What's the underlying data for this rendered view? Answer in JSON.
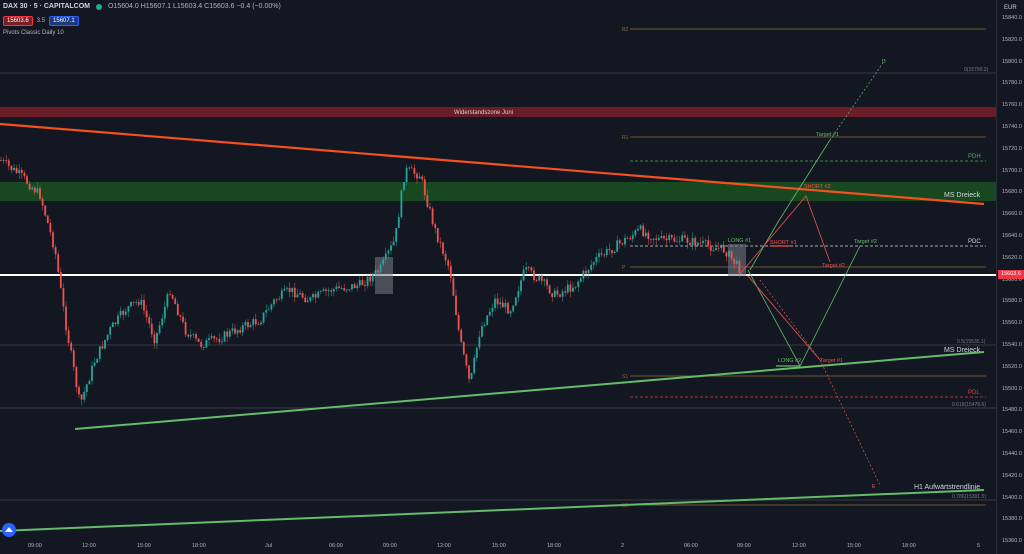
{
  "header": {
    "symbol": "DAX 30 · 5 · CAPITALCOM",
    "ohlc": "O15604.0 H15607.1 L15603.4 C15603.6 −0.4 (−0.00%)",
    "bid": "15603.6",
    "spread": "3.5",
    "ask": "15607.1",
    "indicator": "Pivots Classic Daily 10"
  },
  "currency": "EUR",
  "current_price": "15603.6",
  "colors": {
    "bg": "#131722",
    "up": "#26a69a",
    "down": "#ef5350",
    "red_line": "#f23645",
    "green_line": "#4caf50",
    "resist": "#7a1f27",
    "support": "#1b5e20"
  },
  "price_axis": [
    "15840.0",
    "15820.0",
    "15800.0",
    "15780.0",
    "15760.0",
    "15740.0",
    "15720.0",
    "15700.0",
    "15680.0",
    "15660.0",
    "15640.0",
    "15620.0",
    "15600.0",
    "15580.0",
    "15560.0",
    "15540.0",
    "15520.0",
    "15500.0",
    "15480.0",
    "15460.0",
    "15440.0",
    "15420.0",
    "15400.0",
    "15380.0",
    "15360.0"
  ],
  "time_axis": [
    "09:00",
    "12:00",
    "15:00",
    "18:00",
    "Jul",
    "06:00",
    "09:00",
    "12:00",
    "15:00",
    "18:00",
    "2",
    "06:00",
    "09:00",
    "12:00",
    "15:00",
    "18:00",
    "5"
  ],
  "annotations": {
    "resist_zone": "Widerstandszone Juni",
    "ms_top": "MS Dreieck",
    "ms_bottom": "MS Dreieck",
    "h1": "H1 Aufwärtstrendlinie",
    "pdh": "PDH",
    "pdc": "PDC",
    "pdl": "PDL",
    "r2": "R2",
    "r1": "R1",
    "p": "P",
    "s1": "S1",
    "s2": "S2",
    "fib0": "0(15790.2)",
    "fib05": "0.5(15535.1)",
    "fib0618": "0.618(15478.6)",
    "fib0786": "0.786(15391.5)",
    "long1": "LONG #1",
    "long2": "LONG #2",
    "short1": "SHORT #1",
    "short2": "SHORT #2",
    "target1_up": "Target #1",
    "target2_up": "Target #2",
    "target2_dn": "Target #2",
    "target1_dn": "Target #1",
    "d_label": "D",
    "e_label": "E"
  }
}
